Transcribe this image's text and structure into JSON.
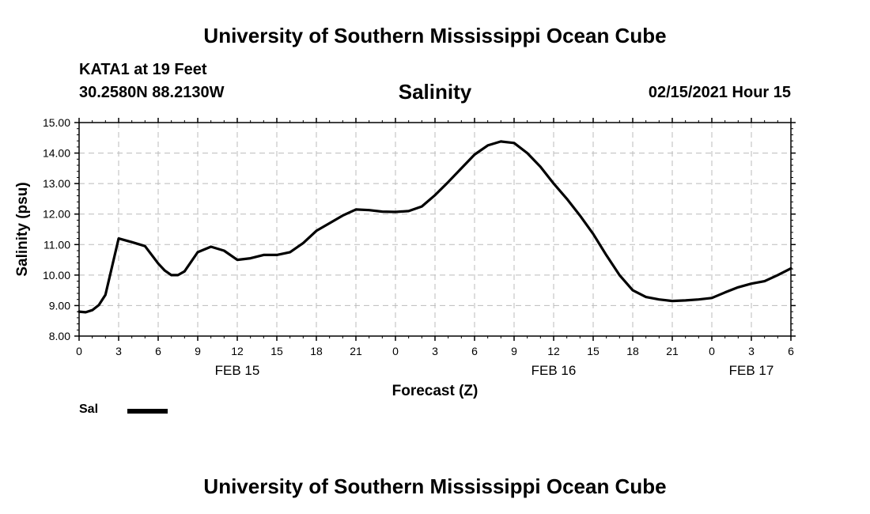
{
  "header": {
    "title": "University of Southern Mississippi Ocean Cube",
    "station": "KATA1 at 19 Feet",
    "coords": "30.2580N 88.2130W",
    "chart_title": "Salinity",
    "datestamp": "02/15/2021 Hour 15"
  },
  "footer": {
    "title": "University of Southern Mississippi Ocean Cube"
  },
  "legend": {
    "label": "Sal",
    "color": "#000000"
  },
  "chart_data": {
    "type": "line",
    "title": "Salinity",
    "xlabel": "Forecast (Z)",
    "ylabel": "Salinity (psu)",
    "x_unit": "hours",
    "xlim": [
      0,
      54
    ],
    "ylim": [
      8.0,
      15.0
    ],
    "grid": true,
    "legend_position": "bottom-left",
    "x_ticks": [
      0,
      3,
      6,
      9,
      12,
      15,
      18,
      21,
      24,
      27,
      30,
      33,
      36,
      39,
      42,
      45,
      48,
      51,
      54
    ],
    "x_tick_labels": [
      "0",
      "3",
      "6",
      "9",
      "12",
      "15",
      "18",
      "21",
      "0",
      "3",
      "6",
      "9",
      "12",
      "15",
      "18",
      "21",
      "0",
      "3",
      "6"
    ],
    "date_labels": [
      {
        "x": 12,
        "label": "FEB 15"
      },
      {
        "x": 36,
        "label": "FEB 16"
      },
      {
        "x": 51,
        "label": "FEB 17"
      }
    ],
    "y_ticks": [
      8.0,
      9.0,
      10.0,
      11.0,
      12.0,
      13.0,
      14.0,
      15.0
    ],
    "y_tick_labels": [
      "8.00",
      "9.00",
      "10.00",
      "11.00",
      "12.00",
      "13.00",
      "14.00",
      "15.00"
    ],
    "series": [
      {
        "name": "Sal",
        "color": "#000000",
        "x": [
          0,
          0.5,
          1,
          1.5,
          2,
          3,
          4,
          5,
          6,
          6.5,
          7,
          7.5,
          8,
          9,
          10,
          11,
          12,
          13,
          14,
          15,
          16,
          17,
          18,
          19,
          20,
          21,
          22,
          23,
          24,
          25,
          26,
          27,
          28,
          29,
          30,
          31,
          32,
          33,
          34,
          35,
          36,
          37,
          38,
          39,
          40,
          41,
          42,
          43,
          44,
          45,
          46,
          47,
          48,
          49,
          50,
          51,
          52,
          53,
          54
        ],
        "values": [
          8.8,
          8.78,
          8.85,
          9.02,
          9.35,
          11.2,
          11.08,
          10.95,
          10.38,
          10.15,
          10.0,
          10.0,
          10.12,
          10.75,
          10.93,
          10.8,
          10.5,
          10.55,
          10.66,
          10.66,
          10.75,
          11.05,
          11.45,
          11.7,
          11.95,
          12.15,
          12.13,
          12.08,
          12.07,
          12.1,
          12.25,
          12.62,
          13.05,
          13.5,
          13.95,
          14.25,
          14.38,
          14.33,
          14.0,
          13.55,
          13.0,
          12.5,
          11.95,
          11.35,
          10.65,
          10.0,
          9.5,
          9.28,
          9.2,
          9.15,
          9.17,
          9.2,
          9.25,
          9.43,
          9.6,
          9.72,
          9.8,
          10.0,
          10.22
        ]
      }
    ]
  }
}
